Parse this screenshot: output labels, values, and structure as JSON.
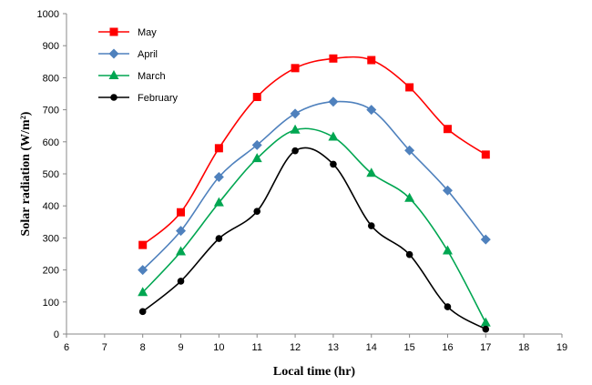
{
  "chart_data": {
    "type": "line",
    "title": "",
    "xlabel": "Local time (hr)",
    "ylabel": "Solar radiation (W/m²)",
    "xlim": [
      6,
      19
    ],
    "ylim": [
      0,
      1000
    ],
    "xticks": [
      6,
      7,
      8,
      9,
      10,
      11,
      12,
      13,
      14,
      15,
      16,
      17,
      18,
      19
    ],
    "yticks": [
      0,
      100,
      200,
      300,
      400,
      500,
      600,
      700,
      800,
      900,
      1000
    ],
    "legend_position": "top-left",
    "x": [
      8,
      9,
      10,
      11,
      12,
      13,
      14,
      15,
      16,
      17
    ],
    "series": [
      {
        "name": "May",
        "color": "#ff0000",
        "marker": "square",
        "values": [
          278,
          380,
          580,
          740,
          830,
          860,
          855,
          770,
          640,
          560
        ]
      },
      {
        "name": "April",
        "color": "#4f81bd",
        "marker": "diamond",
        "values": [
          200,
          322,
          490,
          590,
          688,
          725,
          700,
          573,
          448,
          295
        ]
      },
      {
        "name": "March",
        "color": "#00a651",
        "marker": "triangle",
        "values": [
          130,
          257,
          410,
          548,
          637,
          615,
          502,
          424,
          260,
          35
        ]
      },
      {
        "name": "February",
        "color": "#000000",
        "marker": "circle",
        "values": [
          70,
          165,
          298,
          383,
          572,
          530,
          338,
          248,
          85,
          15
        ]
      }
    ]
  }
}
